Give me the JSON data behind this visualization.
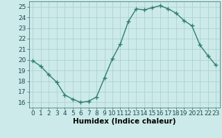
{
  "x": [
    0,
    1,
    2,
    3,
    4,
    5,
    6,
    7,
    8,
    9,
    10,
    11,
    12,
    13,
    14,
    15,
    16,
    17,
    18,
    19,
    20,
    21,
    22,
    23
  ],
  "y": [
    19.9,
    19.4,
    18.6,
    17.9,
    16.7,
    16.3,
    16.0,
    16.1,
    16.5,
    18.3,
    20.1,
    21.5,
    23.6,
    24.8,
    24.7,
    24.9,
    25.1,
    24.8,
    24.4,
    23.7,
    23.2,
    21.4,
    20.4,
    19.5
  ],
  "line_color": "#2e7d6e",
  "marker": "+",
  "marker_size": 4,
  "marker_linewidth": 1.0,
  "line_width": 1.0,
  "bg_color": "#cceaea",
  "grid_color": "#b0d0d0",
  "xlabel": "Humidex (Indice chaleur)",
  "xlabel_fontsize": 7.5,
  "tick_fontsize": 6.5,
  "ylim": [
    15.5,
    25.5
  ],
  "xlim": [
    -0.5,
    23.5
  ],
  "yticks": [
    16,
    17,
    18,
    19,
    20,
    21,
    22,
    23,
    24,
    25
  ],
  "xticks": [
    0,
    1,
    2,
    3,
    4,
    5,
    6,
    7,
    8,
    9,
    10,
    11,
    12,
    13,
    14,
    15,
    16,
    17,
    18,
    19,
    20,
    21,
    22,
    23
  ]
}
